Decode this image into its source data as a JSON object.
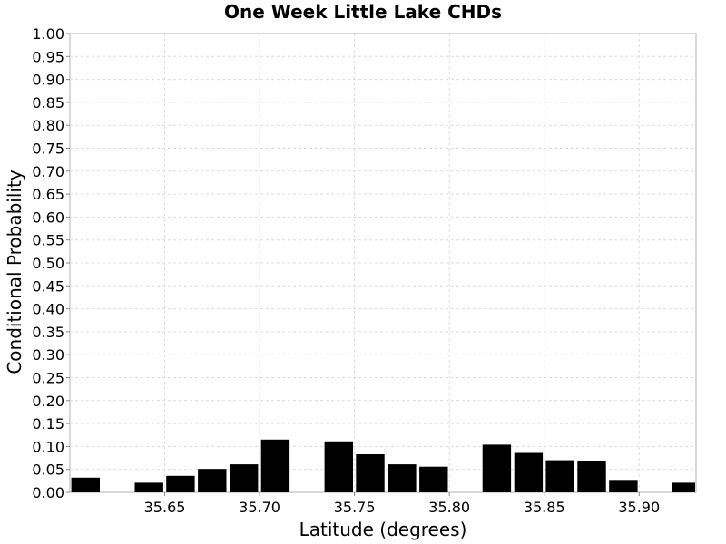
{
  "chart_data": {
    "type": "bar",
    "title": "One Week Little Lake CHDs",
    "xlabel": "Latitude (degrees)",
    "ylabel": "Conditional Probability",
    "xlim": [
      35.6,
      35.93
    ],
    "ylim": [
      0.0,
      1.0
    ],
    "grid": true,
    "bin_width": 0.0167,
    "x_ticks": [
      "35.65",
      "35.70",
      "35.75",
      "35.80",
      "35.85",
      "35.90"
    ],
    "y_ticks": [
      "0.00",
      "0.05",
      "0.10",
      "0.15",
      "0.20",
      "0.25",
      "0.30",
      "0.35",
      "0.40",
      "0.45",
      "0.50",
      "0.55",
      "0.60",
      "0.65",
      "0.70",
      "0.75",
      "0.80",
      "0.85",
      "0.90",
      "0.95",
      "1.00"
    ],
    "bars": [
      {
        "x": 35.6083,
        "value": 0.032
      },
      {
        "x": 35.6417,
        "value": 0.021
      },
      {
        "x": 35.6583,
        "value": 0.036
      },
      {
        "x": 35.675,
        "value": 0.051
      },
      {
        "x": 35.6917,
        "value": 0.061
      },
      {
        "x": 35.7083,
        "value": 0.115
      },
      {
        "x": 35.7417,
        "value": 0.111
      },
      {
        "x": 35.7583,
        "value": 0.083
      },
      {
        "x": 35.775,
        "value": 0.061
      },
      {
        "x": 35.7917,
        "value": 0.056
      },
      {
        "x": 35.825,
        "value": 0.104
      },
      {
        "x": 35.8417,
        "value": 0.086
      },
      {
        "x": 35.8583,
        "value": 0.07
      },
      {
        "x": 35.875,
        "value": 0.068
      },
      {
        "x": 35.8917,
        "value": 0.027
      },
      {
        "x": 35.925,
        "value": 0.021
      }
    ]
  }
}
